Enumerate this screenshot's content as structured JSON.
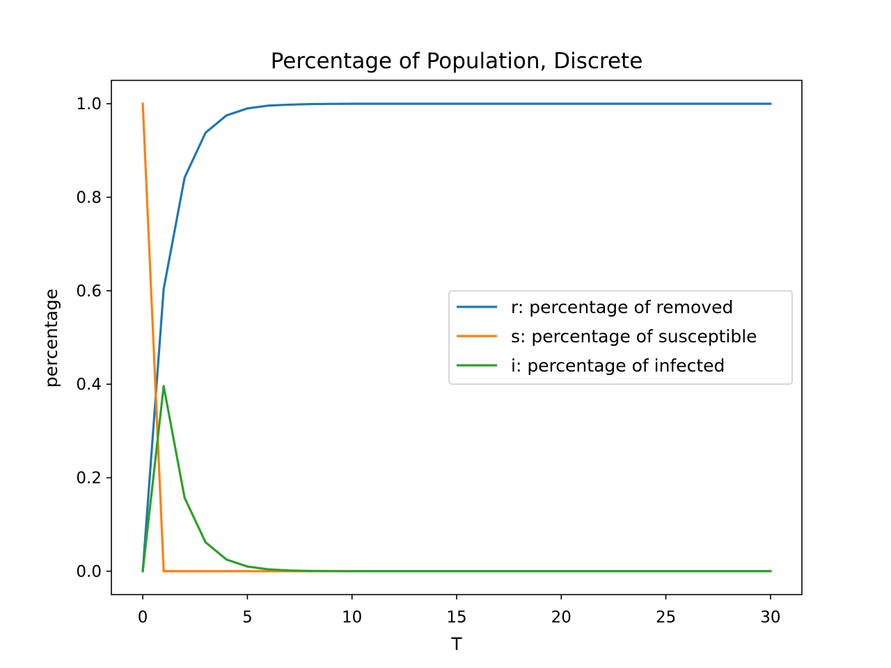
{
  "chart_data": {
    "type": "line",
    "title": "Percentage of Population, Discrete",
    "xlabel": "T",
    "ylabel": "percentage",
    "xlim": [
      -1.5,
      31.5
    ],
    "ylim": [
      -0.05,
      1.05
    ],
    "xticks": [
      0,
      5,
      10,
      15,
      20,
      25,
      30
    ],
    "yticks": [
      0.0,
      0.2,
      0.4,
      0.6,
      0.8,
      1.0
    ],
    "xtick_labels": [
      "0",
      "5",
      "10",
      "15",
      "20",
      "25",
      "30"
    ],
    "ytick_labels": [
      "0.0",
      "0.2",
      "0.4",
      "0.6",
      "0.8",
      "1.0"
    ],
    "grid": false,
    "legend_position": "center-right",
    "x": [
      0,
      1,
      2,
      3,
      4,
      5,
      6,
      7,
      8,
      9,
      10,
      11,
      12,
      13,
      14,
      15,
      16,
      17,
      18,
      19,
      20,
      21,
      22,
      23,
      24,
      25,
      26,
      27,
      28,
      29,
      30
    ],
    "series": [
      {
        "name": "r: percentage of removed",
        "color": "#1f77b4",
        "values": [
          0.0,
          0.604,
          0.842,
          0.938,
          0.975,
          0.99,
          0.996,
          0.998,
          0.9993,
          0.9997,
          0.9999,
          1.0,
          1.0,
          1.0,
          1.0,
          1.0,
          1.0,
          1.0,
          1.0,
          1.0,
          1.0,
          1.0,
          1.0,
          1.0,
          1.0,
          1.0,
          1.0,
          1.0,
          1.0,
          1.0,
          1.0
        ]
      },
      {
        "name": "s: percentage of susceptible",
        "color": "#ff7f0e",
        "values": [
          1.0,
          0.0,
          0.0,
          0.0,
          0.0,
          0.0,
          0.0,
          0.0,
          0.0,
          0.0,
          0.0,
          0.0,
          0.0,
          0.0,
          0.0,
          0.0,
          0.0,
          0.0,
          0.0,
          0.0,
          0.0,
          0.0,
          0.0,
          0.0,
          0.0,
          0.0,
          0.0,
          0.0,
          0.0,
          0.0,
          0.0
        ]
      },
      {
        "name": "i: percentage of infected",
        "color": "#2ca02c",
        "values": [
          0.0,
          0.396,
          0.157,
          0.062,
          0.025,
          0.01,
          0.004,
          0.0016,
          0.0006,
          0.0003,
          0.0001,
          0.0,
          0.0,
          0.0,
          0.0,
          0.0,
          0.0,
          0.0,
          0.0,
          0.0,
          0.0,
          0.0,
          0.0,
          0.0,
          0.0,
          0.0,
          0.0,
          0.0,
          0.0,
          0.0,
          0.0
        ]
      }
    ]
  }
}
